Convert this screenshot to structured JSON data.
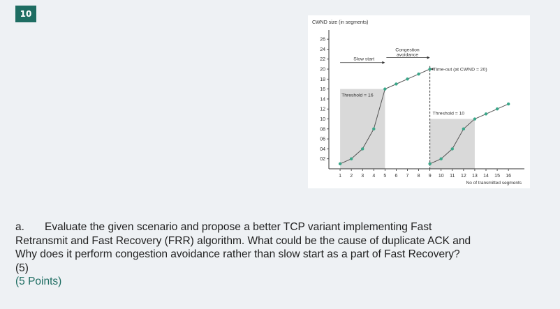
{
  "question": {
    "number": "10",
    "prefix": "a.",
    "lines": [
      "Evaluate the given scenario and propose a better TCP variant implementing Fast",
      "Retransmit and Fast Recovery (FRR) algorithm. What could be the cause of duplicate ACK and",
      "Why does it perform congestion avoidance rather than slow start as a part of Fast Recovery?",
      "(5)"
    ],
    "points": "(5 Points)"
  },
  "colors": {
    "badge": "#1e6d62",
    "marker": "#3aa88a",
    "shade": "#d9d9d9",
    "line": "#555555"
  },
  "chart_data": {
    "type": "line",
    "ylabel": "CWND size (in segments)",
    "xlabel": "No of transmitted segments",
    "y_ticks": [
      "26",
      "24",
      "22",
      "20",
      "18",
      "16",
      "14",
      "12",
      "10",
      "08",
      "06",
      "04",
      "02"
    ],
    "x_ticks": [
      "1",
      "2",
      "3",
      "4",
      "5",
      "6",
      "7",
      "8",
      "9",
      "10",
      "11",
      "12",
      "13",
      "14",
      "15",
      "16"
    ],
    "ylim": [
      0,
      27
    ],
    "xlim": [
      0,
      16.8
    ],
    "series": [
      {
        "points": [
          [
            1,
            1
          ],
          [
            2,
            2
          ],
          [
            3,
            4
          ],
          [
            4,
            8
          ],
          [
            5,
            16
          ],
          [
            6,
            17
          ],
          [
            7,
            18
          ],
          [
            8,
            19
          ],
          [
            9,
            20
          ]
        ]
      },
      {
        "points": [
          [
            9,
            1
          ],
          [
            10,
            2
          ],
          [
            11,
            4
          ],
          [
            12,
            8
          ],
          [
            13,
            10
          ],
          [
            14,
            11
          ],
          [
            15,
            12
          ],
          [
            16,
            13
          ]
        ]
      }
    ],
    "shaded_regions": [
      {
        "x": [
          1,
          5
        ],
        "y": [
          0,
          16
        ]
      },
      {
        "x": [
          9,
          13
        ],
        "y": [
          0,
          10
        ]
      }
    ],
    "timeout_x": 9,
    "annotations": {
      "slow_start": "Slow start",
      "congestion_avoidance_1": "Congestion",
      "congestion_avoidance_2": "avoidance",
      "timeout": "Time-out (at CWND = 20)",
      "threshold1": "Threshold = 16",
      "threshold2": "Threshold = 10"
    }
  }
}
